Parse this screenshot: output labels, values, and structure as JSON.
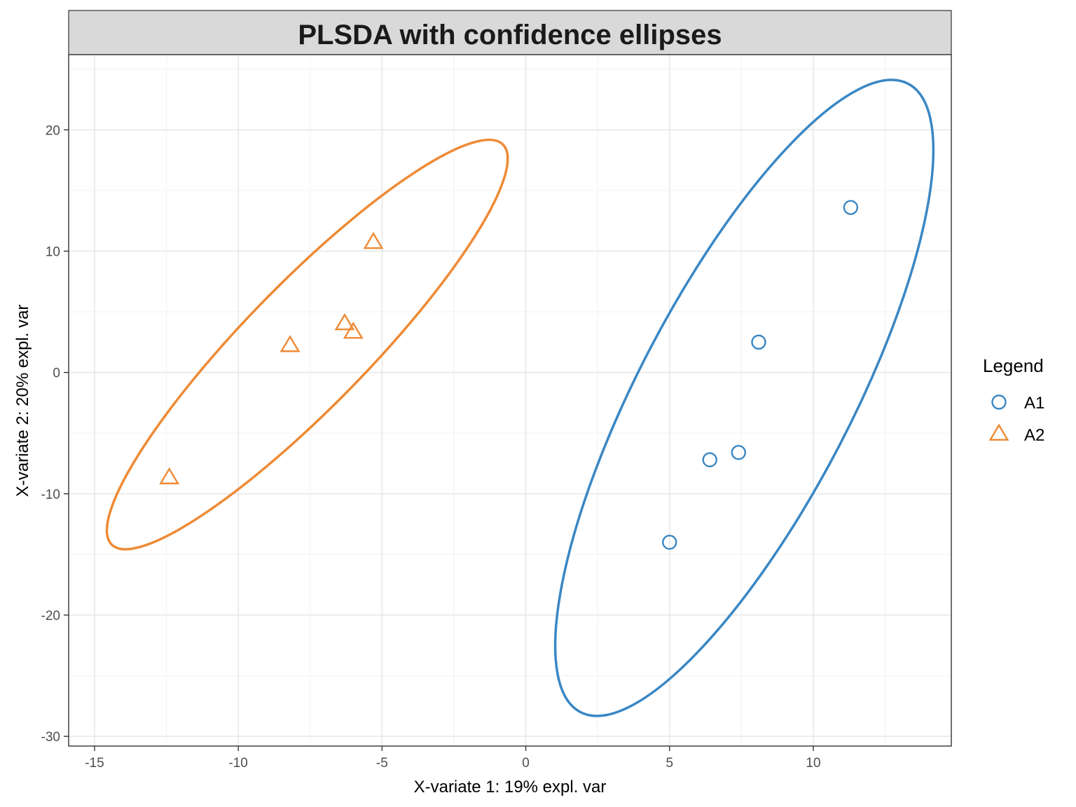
{
  "chart_data": {
    "type": "scatter",
    "title": "PLSDA with confidence ellipses",
    "xlabel": "X-variate 1: 19% expl. var",
    "ylabel": "X-variate 2: 20% expl. var",
    "xlim": [
      -15.9,
      14.8
    ],
    "ylim": [
      -30.8,
      26.2
    ],
    "x_ticks": [
      -15,
      -10,
      -5,
      0,
      5,
      10
    ],
    "y_ticks": [
      -30,
      -20,
      -10,
      0,
      10,
      20
    ],
    "grid": true,
    "legend": {
      "title": "Legend",
      "position": "right"
    },
    "series": [
      {
        "name": "A1",
        "marker": "circle",
        "color": "#3A87C4",
        "points": [
          {
            "x": 5.0,
            "y": -14.0
          },
          {
            "x": 6.4,
            "y": -7.2
          },
          {
            "x": 7.4,
            "y": -6.6
          },
          {
            "x": 8.1,
            "y": 2.5
          },
          {
            "x": 11.3,
            "y": 13.6
          }
        ],
        "ellipse": {
          "center": [
            7.6,
            -2.1
          ],
          "tip_a": [
            13.3,
            23.8
          ],
          "tip_b": [
            1.9,
            -28.0
          ],
          "half_width": 0.3
        }
      },
      {
        "name": "A2",
        "marker": "triangle",
        "color": "#EE8A35",
        "points": [
          {
            "x": -12.4,
            "y": -8.7
          },
          {
            "x": -8.2,
            "y": 2.2
          },
          {
            "x": -6.3,
            "y": 4.0
          },
          {
            "x": -6.0,
            "y": 3.3
          },
          {
            "x": -5.3,
            "y": 10.7
          }
        ],
        "ellipse": {
          "center": [
            -7.6,
            2.3
          ],
          "tip_a": [
            -0.8,
            18.8
          ],
          "tip_b": [
            -14.4,
            -14.2
          ],
          "half_width": 0.22
        }
      }
    ]
  }
}
